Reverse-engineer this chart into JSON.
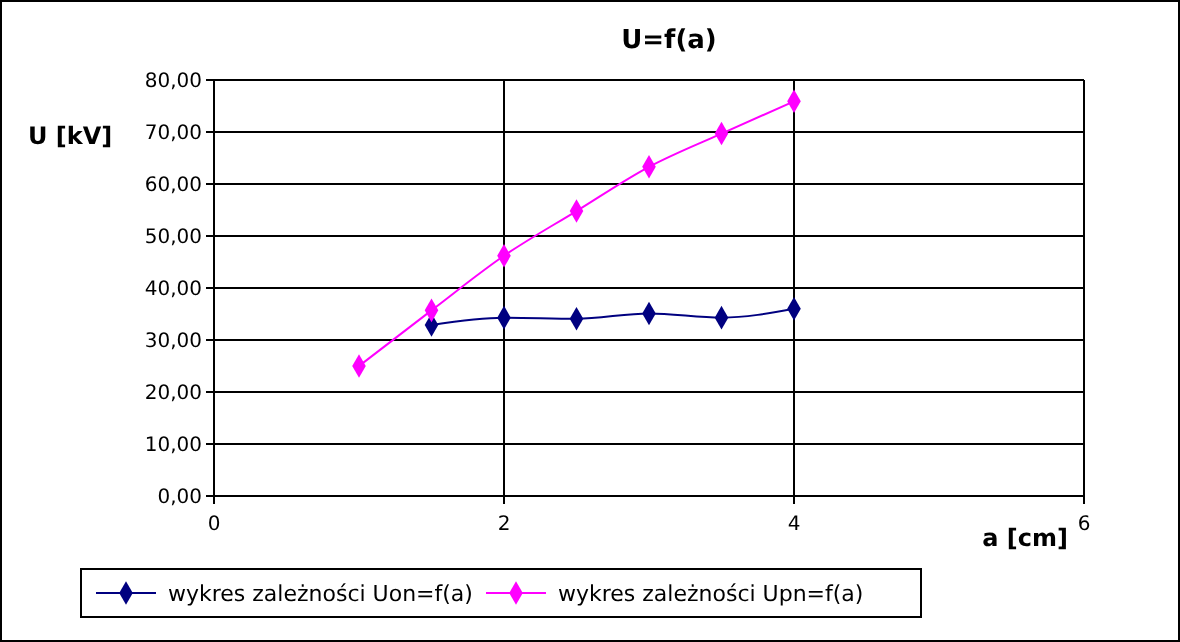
{
  "chart_data": {
    "type": "line",
    "title": "U=f(a)",
    "xlabel": "a [cm]",
    "ylabel": "U [kV]",
    "xlim": [
      0,
      6
    ],
    "xticks": [
      0,
      2,
      4,
      6
    ],
    "ylim": [
      0,
      80
    ],
    "yticks": [
      {
        "value": 0,
        "label": "0,00"
      },
      {
        "value": 10,
        "label": "10,00"
      },
      {
        "value": 20,
        "label": "20,00"
      },
      {
        "value": 30,
        "label": "30,00"
      },
      {
        "value": 40,
        "label": "40,00"
      },
      {
        "value": 50,
        "label": "50,00"
      },
      {
        "value": 60,
        "label": "60,00"
      },
      {
        "value": 70,
        "label": "70,00"
      },
      {
        "value": 80,
        "label": "80,00"
      }
    ],
    "grid": true,
    "legend": "bottom",
    "marker": "diamond",
    "line_style": "solid",
    "series": [
      {
        "name": "wykres zależności Uon=f(a)",
        "color": "#000080",
        "x": [
          1.5,
          2,
          2.5,
          3,
          3.5,
          4
        ],
        "values": [
          32.9,
          34.3,
          34.1,
          35.1,
          34.3,
          36.0
        ]
      },
      {
        "name": "wykres zależności Upn=f(a)",
        "color": "#ff00ff",
        "x": [
          1,
          1.5,
          2,
          2.5,
          3,
          3.5,
          4
        ],
        "values": [
          25.0,
          35.7,
          46.2,
          54.8,
          63.3,
          69.7,
          75.9
        ]
      }
    ]
  }
}
